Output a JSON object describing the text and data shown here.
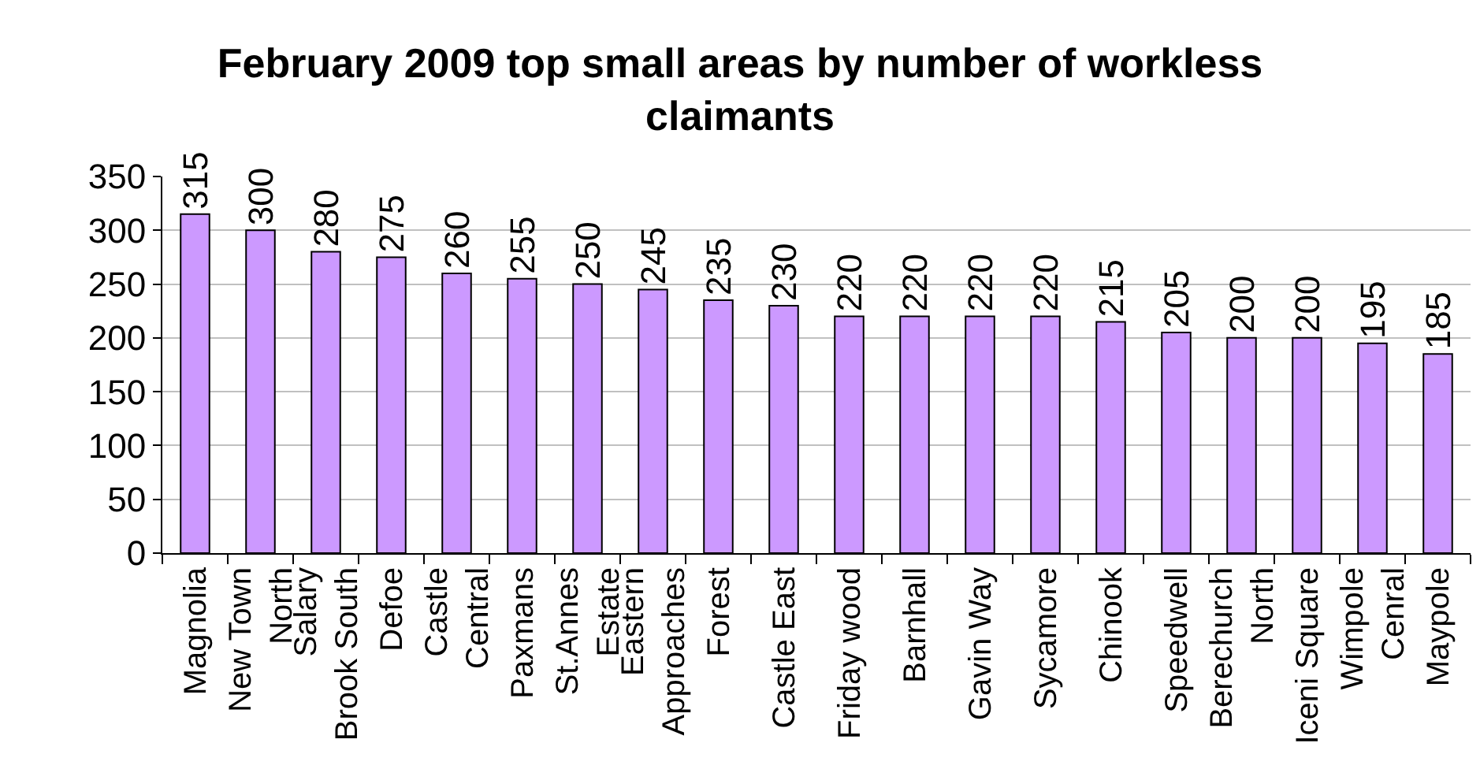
{
  "chart_data": {
    "type": "bar",
    "title": "February 2009 top small areas by number of workless claimants",
    "categories": [
      "Magnolia",
      "New Town\nNorth",
      "Salary\nBrook South",
      "Defoe",
      "Castle\nCentral",
      "Paxmans",
      "St.Annes\nEstate",
      "Eastern\nApproaches",
      "Forest",
      "Castle East",
      "Friday wood",
      "Barnhall",
      "Gavin Way",
      "Sycamore",
      "Chinook",
      "Speedwell",
      "Berechurch\nNorth",
      "Iceni Square",
      "Wimpole\nCenral",
      "Maypole"
    ],
    "values": [
      315,
      300,
      280,
      275,
      260,
      255,
      250,
      245,
      235,
      230,
      220,
      220,
      220,
      220,
      215,
      205,
      200,
      200,
      195,
      185
    ],
    "color": "#cc99ff",
    "ylim": [
      0,
      350
    ],
    "yticks": [
      0,
      50,
      100,
      150,
      200,
      250,
      300,
      350
    ],
    "grid": "y",
    "data_labels": true
  }
}
